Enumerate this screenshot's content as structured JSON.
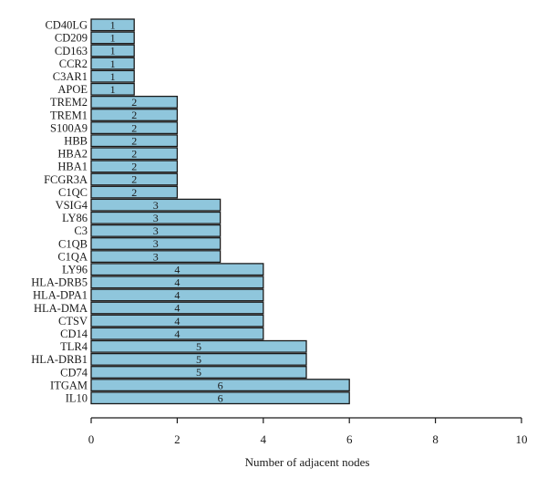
{
  "chart_data": {
    "type": "bar",
    "orientation": "horizontal",
    "categories": [
      "CD40LG",
      "CD209",
      "CD163",
      "CCR2",
      "C3AR1",
      "APOE",
      "TREM2",
      "TREM1",
      "S100A9",
      "HBB",
      "HBA2",
      "HBA1",
      "FCGR3A",
      "C1QC",
      "VSIG4",
      "LY86",
      "C3",
      "C1QB",
      "C1QA",
      "LY96",
      "HLA-DRB5",
      "HLA-DPA1",
      "HLA-DMA",
      "CTSV",
      "CD14",
      "TLR4",
      "HLA-DRB1",
      "CD74",
      "ITGAM",
      "IL10"
    ],
    "values": [
      1,
      1,
      1,
      1,
      1,
      1,
      2,
      2,
      2,
      2,
      2,
      2,
      2,
      2,
      3,
      3,
      3,
      3,
      3,
      4,
      4,
      4,
      4,
      4,
      4,
      5,
      5,
      5,
      6,
      6
    ],
    "value_labels": [
      "1",
      "1",
      "1",
      "1",
      "1",
      "1",
      "2",
      "2",
      "2",
      "2",
      "2",
      "2",
      "2",
      "2",
      "3",
      "3",
      "3",
      "3",
      "3",
      "4",
      "4",
      "4",
      "4",
      "4",
      "4",
      "5",
      "5",
      "5",
      "6",
      "6"
    ],
    "xlabel": "Number of adjacent nodes",
    "ylabel": "",
    "xlim": [
      0,
      10
    ],
    "xticks": [
      0,
      2,
      4,
      6,
      8,
      10
    ],
    "xtick_labels": [
      "0",
      "2",
      "4",
      "6",
      "8",
      "10"
    ],
    "grid": false,
    "bar_color": "#8fc6dc",
    "edge_color": "#1a1a1a"
  }
}
